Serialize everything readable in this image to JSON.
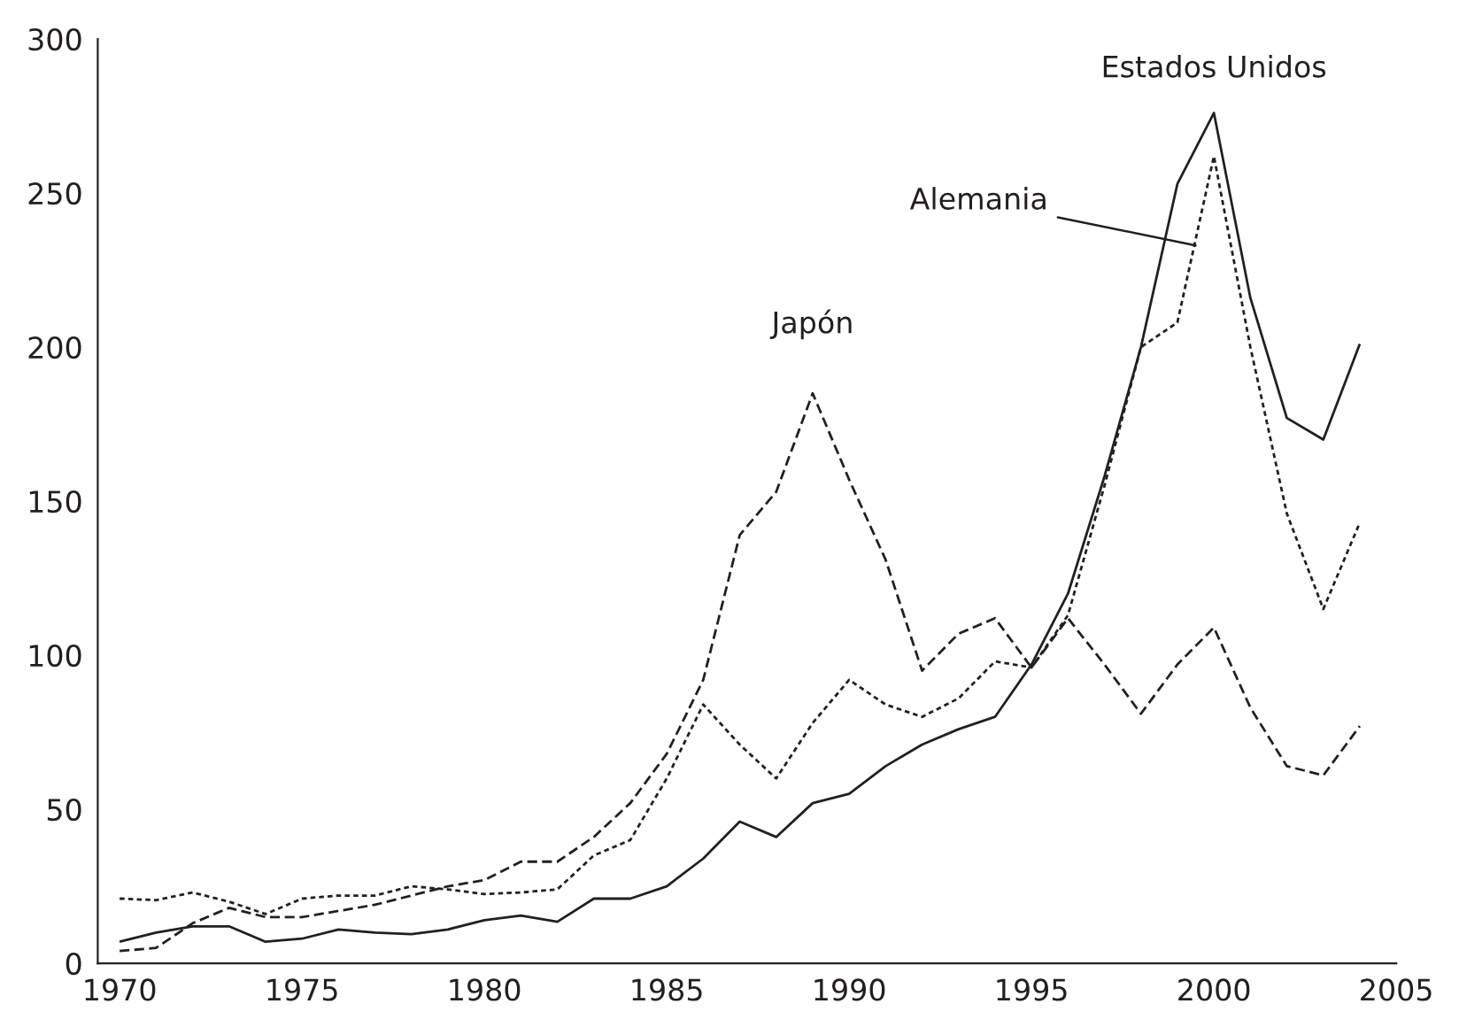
{
  "chart_data": {
    "type": "line",
    "x": [
      1970,
      1971,
      1972,
      1973,
      1974,
      1975,
      1976,
      1977,
      1978,
      1979,
      1980,
      1981,
      1982,
      1983,
      1984,
      1985,
      1986,
      1987,
      1988,
      1989,
      1990,
      1991,
      1992,
      1993,
      1994,
      1995,
      1996,
      1997,
      1998,
      1999,
      2000,
      2001,
      2002,
      2003,
      2004
    ],
    "series": [
      {
        "color": "#231f20",
        "line_style": "solid",
        "values": [
          7,
          10,
          12,
          12,
          7,
          8,
          11,
          10,
          9.5,
          11,
          14,
          15.5,
          13.5,
          21,
          21,
          25,
          34,
          46,
          41,
          52,
          55,
          64,
          71,
          76,
          80,
          97,
          120,
          158,
          200,
          253,
          276,
          216,
          177,
          170,
          201
        ]
      },
      {
        "color": "#231f20",
        "line_style": "dotted",
        "values": [
          21,
          20.5,
          23,
          20,
          16,
          21,
          22,
          22,
          25,
          24,
          22.5,
          23,
          24,
          35,
          40,
          60,
          84,
          71,
          60,
          78,
          92,
          84,
          80,
          86,
          98,
          96,
          113,
          155,
          200,
          208,
          262,
          200,
          146,
          115,
          143
        ]
      },
      {
        "color": "#231f20",
        "line_style": "dashed",
        "values": [
          4,
          5,
          13,
          18,
          15,
          15,
          17,
          19,
          22,
          25,
          27,
          33,
          33,
          41,
          52,
          68,
          92,
          139,
          153,
          185,
          157,
          131,
          95,
          107,
          112,
          96,
          112,
          97,
          81,
          97,
          109,
          83,
          64,
          61,
          77
        ]
      }
    ],
    "annotations": [
      {
        "text": "Estados Unidos",
        "x": 2000,
        "y": 276
      },
      {
        "text": "Alemania",
        "x": 1999.5,
        "y": 233
      },
      {
        "text": "Japón",
        "x": 1989,
        "y": 185
      }
    ],
    "xlim": [
      1969.4,
      2005
    ],
    "xticks": [
      1970,
      1975,
      1980,
      1985,
      1990,
      1995,
      2000,
      2005
    ],
    "ylim": [
      0,
      300
    ],
    "yticks": [
      0,
      50,
      100,
      150,
      200,
      250,
      300
    ],
    "grid": false,
    "legend": false,
    "marker": "none"
  }
}
